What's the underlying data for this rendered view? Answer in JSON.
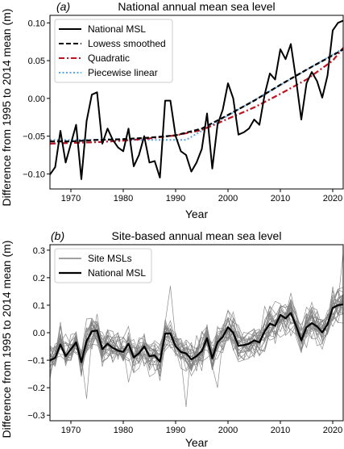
{
  "chart_data": [
    {
      "type": "line",
      "panel_label": "(a)",
      "title": "National annual mean sea level",
      "xlabel": "Year",
      "ylabel": "Difference from 1995 to 2014 mean (m)",
      "xlim": [
        1966,
        2022
      ],
      "ylim": [
        -0.12,
        0.11
      ],
      "xticks": [
        1970,
        1980,
        1990,
        2000,
        2010,
        2020
      ],
      "yticks": [
        -0.1,
        -0.05,
        0.0,
        0.05,
        0.1
      ],
      "ytick_labels": [
        "−0.10",
        "−0.05",
        "0.00",
        "0.05",
        "0.10"
      ],
      "legend_position": "top-left",
      "series": [
        {
          "name": "National MSL",
          "color": "#000000",
          "style": "solid",
          "x": [
            1966,
            1967,
            1968,
            1969,
            1970,
            1971,
            1972,
            1973,
            1974,
            1975,
            1976,
            1977,
            1978,
            1979,
            1980,
            1981,
            1982,
            1983,
            1984,
            1985,
            1986,
            1987,
            1988,
            1989,
            1990,
            1991,
            1992,
            1993,
            1994,
            1995,
            1996,
            1997,
            1998,
            1999,
            2000,
            2001,
            2002,
            2003,
            2004,
            2005,
            2006,
            2007,
            2008,
            2009,
            2010,
            2011,
            2012,
            2013,
            2014,
            2015,
            2016,
            2017,
            2018,
            2019,
            2020,
            2021,
            2022
          ],
          "y": [
            -0.101,
            -0.091,
            -0.043,
            -0.085,
            -0.06,
            -0.035,
            -0.107,
            -0.03,
            0.005,
            0.008,
            -0.06,
            -0.04,
            -0.055,
            -0.065,
            -0.07,
            -0.04,
            -0.09,
            -0.075,
            -0.05,
            -0.085,
            -0.083,
            -0.105,
            -0.003,
            -0.003,
            -0.05,
            -0.07,
            -0.075,
            -0.097,
            -0.085,
            -0.067,
            -0.02,
            -0.093,
            -0.035,
            -0.015,
            0.02,
            0.0,
            -0.048,
            -0.045,
            -0.04,
            -0.028,
            -0.035,
            0.005,
            0.033,
            0.025,
            0.065,
            0.052,
            0.072,
            0.025,
            -0.028,
            0.02,
            0.035,
            0.023,
            0.001,
            0.03,
            0.09,
            0.1,
            0.103
          ]
        },
        {
          "name": "Lowess smoothed",
          "color": "#000000",
          "style": "dashed",
          "x": [
            1966,
            1970,
            1975,
            1980,
            1985,
            1990,
            1995,
            2000,
            2005,
            2010,
            2015,
            2020,
            2022
          ],
          "y": [
            -0.057,
            -0.057,
            -0.055,
            -0.054,
            -0.052,
            -0.049,
            -0.04,
            -0.022,
            -0.003,
            0.018,
            0.038,
            0.057,
            0.065
          ]
        },
        {
          "name": "Quadratic",
          "color": "#c1121f",
          "style": "dashdot",
          "x": [
            1966,
            1970,
            1975,
            1980,
            1985,
            1990,
            1995,
            2000,
            2005,
            2010,
            2015,
            2020,
            2022
          ],
          "y": [
            -0.06,
            -0.059,
            -0.058,
            -0.056,
            -0.053,
            -0.049,
            -0.042,
            -0.027,
            -0.012,
            0.006,
            0.025,
            0.05,
            0.067
          ]
        },
        {
          "name": "Piecewise linear",
          "color": "#5aa5e6",
          "style": "dotted",
          "x": [
            1966,
            1992,
            2022
          ],
          "y": [
            -0.055,
            -0.055,
            0.066
          ]
        }
      ]
    },
    {
      "type": "line",
      "panel_label": "(b)",
      "title": "Site-based annual mean sea level",
      "xlabel": "Year",
      "ylabel": "Difference from 1995 to 2014 mean (m)",
      "xlim": [
        1966,
        2022
      ],
      "ylim": [
        -0.32,
        0.32
      ],
      "xticks": [
        1970,
        1980,
        1990,
        2000,
        2010,
        2020
      ],
      "yticks": [
        -0.3,
        -0.2,
        -0.1,
        0.0,
        0.1,
        0.2,
        0.3
      ],
      "ytick_labels": [
        "−0.3",
        "−0.2",
        "−0.1",
        "0.0",
        "0.1",
        "0.2",
        "0.3"
      ],
      "legend_position": "top-left",
      "site_count": 25,
      "site_spread": 0.05,
      "site_extremes": [
        {
          "year": 1989,
          "value": 0.17
        },
        {
          "year": 1992,
          "value": -0.27
        },
        {
          "year": 1973,
          "value": -0.24
        },
        {
          "year": 2022,
          "value": 0.29
        },
        {
          "year": 1981,
          "value": -0.18
        },
        {
          "year": 1998,
          "value": -0.2
        }
      ],
      "series": [
        {
          "name": "Site MSLs",
          "color": "#808080",
          "style": "solid"
        },
        {
          "name": "National MSL",
          "color": "#000000",
          "style": "solid",
          "ref": "national"
        }
      ]
    }
  ]
}
